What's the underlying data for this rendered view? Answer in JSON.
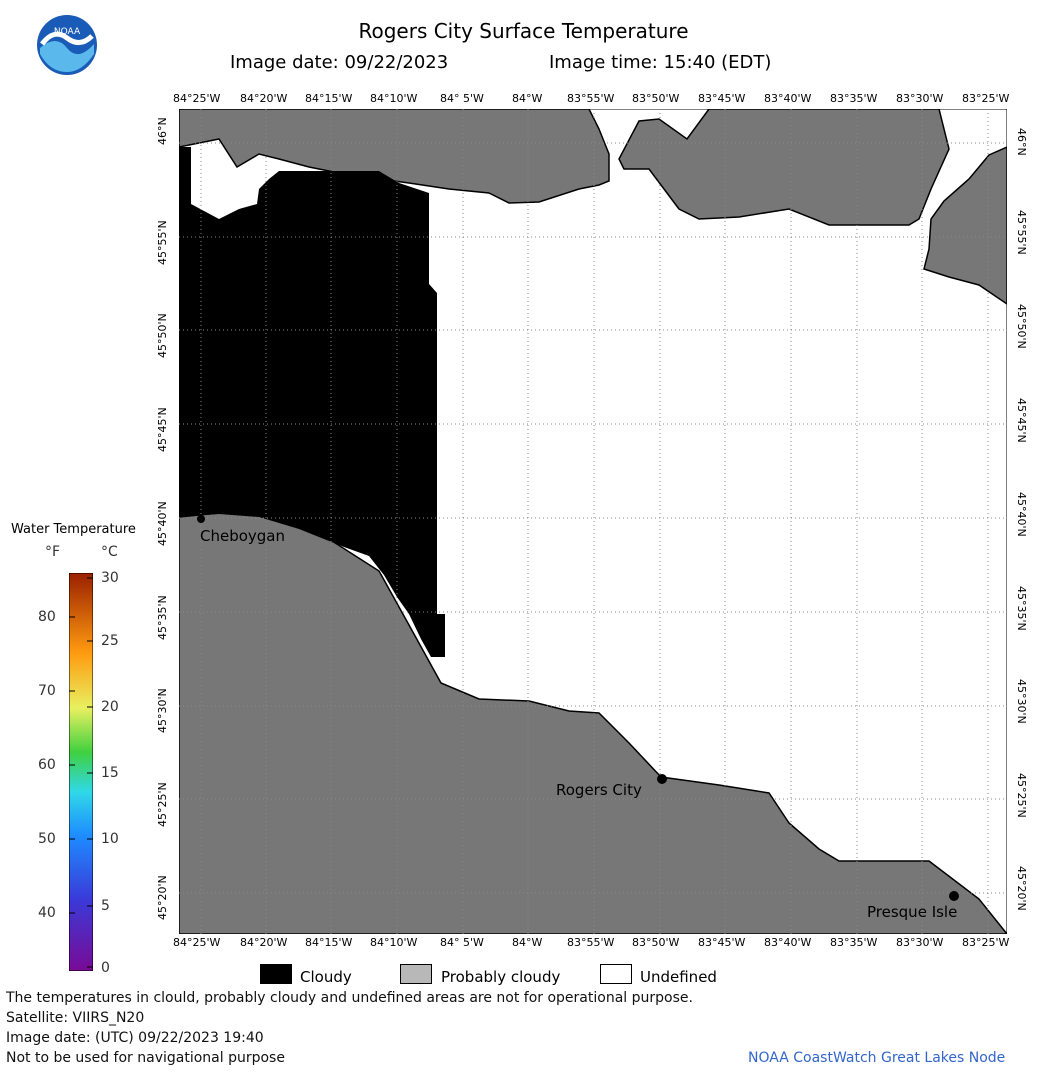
{
  "header": {
    "title": "Rogers City Surface Temperature",
    "image_date": "Image date: 09/22/2023",
    "image_time": "Image time: 15:40 (EDT)"
  },
  "logo": {
    "text": "NOAA"
  },
  "map": {
    "lon_labels": [
      "84°25'W",
      "84°20'W",
      "84°15'W",
      "84°10'W",
      "84° 5'W",
      "84°W",
      "83°55'W",
      "83°50'W",
      "83°45'W",
      "83°40'W",
      "83°35'W",
      "83°30'W",
      "83°25'W"
    ],
    "lat_labels": [
      "46°N",
      "45°55'N",
      "45°50'N",
      "45°45'N",
      "45°40'N",
      "45°35'N",
      "45°30'N",
      "45°25'N",
      "45°20'N"
    ],
    "places": [
      {
        "name": "Cheboygan"
      },
      {
        "name": "Rogers City"
      },
      {
        "name": "Presque Isle"
      }
    ],
    "colors": {
      "cloudy": "#000000",
      "probably_cloudy": "#777777",
      "undefined": "#ffffff"
    }
  },
  "legend": {
    "title": "Water Temperature",
    "unit_f": "°F",
    "unit_c": "°C",
    "f_ticks": [
      "80",
      "70",
      "60",
      "50",
      "40"
    ],
    "c_ticks": [
      "30",
      "25",
      "20",
      "15",
      "10",
      "5",
      "0"
    ]
  },
  "key": {
    "cloudy": "Cloudy",
    "probably_cloudy": "Probably cloudy",
    "undefined": "Undefined"
  },
  "footer": {
    "line1": "The temperatures in clould, probably cloudy and undefined areas are not for operational purpose.",
    "line2": "Satellite: VIIRS_N20",
    "line3": "Image date: (UTC) 09/22/2023  19:40",
    "line4": "Not to be used for navigational purpose",
    "credit": "NOAA CoastWatch Great Lakes Node"
  }
}
